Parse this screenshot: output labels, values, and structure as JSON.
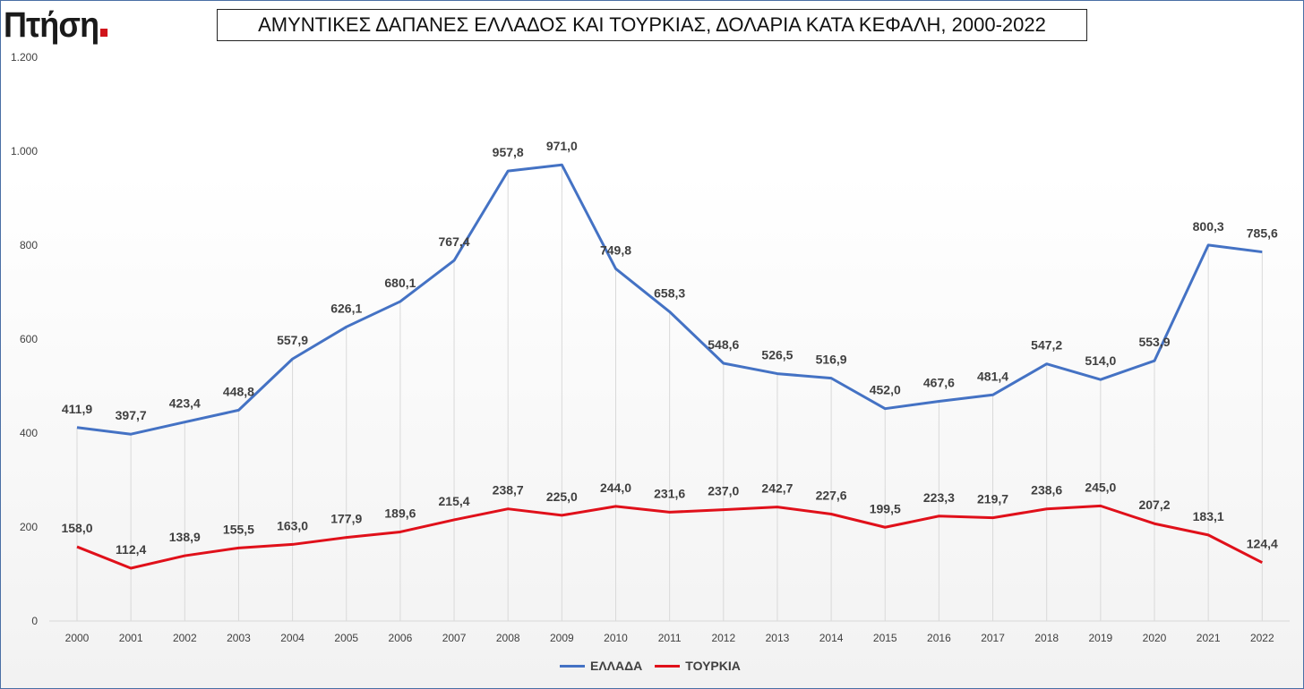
{
  "logo": {
    "text": "Πτήση",
    "dot_color": "#d0141b"
  },
  "chart_data": {
    "type": "line",
    "title": "ΑΜΥΝΤΙΚΕΣ ΔΑΠΑΝΕΣ ΕΛΛΑΔΟΣ ΚΑΙ ΤΟΥΡΚΙΑΣ, ΔΟΛΑΡΙΑ ΚΑΤΑ ΚΕΦΑΛΗ, 2000-2022",
    "x": [
      "2000",
      "2001",
      "2002",
      "2003",
      "2004",
      "2005",
      "2006",
      "2007",
      "2008",
      "2009",
      "2010",
      "2011",
      "2012",
      "2013",
      "2014",
      "2015",
      "2016",
      "2017",
      "2018",
      "2019",
      "2020",
      "2021",
      "2022"
    ],
    "ylim": [
      0,
      1200
    ],
    "yticks": [
      0,
      200,
      400,
      600,
      800,
      1000,
      1200
    ],
    "ytick_labels": [
      "0",
      "200",
      "400",
      "600",
      "800",
      "1.000",
      "1.200"
    ],
    "grid": "vertical",
    "legend_position": "bottom",
    "series": [
      {
        "name": "ΕΛΛΑΔΑ",
        "color": "#4472c4",
        "values": [
          411.9,
          397.7,
          423.4,
          448.8,
          557.9,
          626.1,
          680.1,
          767.4,
          957.8,
          971.0,
          749.8,
          658.3,
          548.6,
          526.5,
          516.9,
          452.0,
          467.6,
          481.4,
          547.2,
          514.0,
          553.9,
          800.3,
          785.6
        ],
        "labels": [
          "411,9",
          "397,7",
          "423,4",
          "448,8",
          "557,9",
          "626,1",
          "680,1",
          "767,4",
          "957,8",
          "971,0",
          "749,8",
          "658,3",
          "548,6",
          "526,5",
          "516,9",
          "452,0",
          "467,6",
          "481,4",
          "547,2",
          "514,0",
          "553,9",
          "800,3",
          "785,6"
        ]
      },
      {
        "name": "ΤΟΥΡΚΙΑ",
        "color": "#e0101a",
        "values": [
          158.0,
          112.4,
          138.9,
          155.5,
          163.0,
          177.9,
          189.6,
          215.4,
          238.7,
          225.0,
          244.0,
          231.6,
          237.0,
          242.7,
          227.6,
          199.5,
          223.3,
          219.7,
          238.6,
          245.0,
          207.2,
          183.1,
          124.4
        ],
        "labels": [
          "158,0",
          "112,4",
          "138,9",
          "155,5",
          "163,0",
          "177,9",
          "189,6",
          "215,4",
          "238,7",
          "225,0",
          "244,0",
          "231,6",
          "237,0",
          "242,7",
          "227,6",
          "199,5",
          "223,3",
          "219,7",
          "238,6",
          "245,0",
          "207,2",
          "183,1",
          "124,4"
        ]
      }
    ]
  }
}
